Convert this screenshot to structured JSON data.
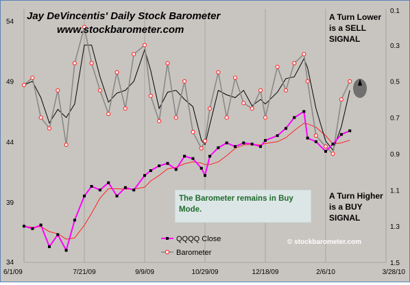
{
  "chart_data": {
    "type": "line",
    "title": "Jay DeVincentis' Daily Stock Barometer",
    "subtitle": "www.stockbarometer.com",
    "x_ticks": [
      "6/1/09",
      "7/21/09",
      "9/9/09",
      "10/29/09",
      "12/18/09",
      "2/6/10",
      "3/28/10"
    ],
    "y_left_ticks": [
      "34",
      "39",
      "44",
      "49",
      "54"
    ],
    "y_right_ticks": [
      "0.1",
      "0.3",
      "0.5",
      "0.7",
      "0.9",
      "1.1",
      "1.3",
      "1.5"
    ],
    "ylim_left": [
      34,
      55
    ],
    "ylim_right_inverted": [
      0.1,
      1.5
    ],
    "grid": "vertical",
    "legend_position": "bottom-center",
    "series": [
      {
        "name": "QQQQ Close",
        "axis": "left",
        "color": "#ff00ff",
        "x": [
          "6/1/09",
          "6/8/09",
          "6/15/09",
          "6/22/09",
          "6/29/09",
          "7/6/09",
          "7/13/09",
          "7/21/09",
          "7/27/09",
          "8/3/09",
          "8/10/09",
          "8/17/09",
          "8/24/09",
          "8/31/09",
          "9/9/09",
          "9/14/09",
          "9/21/09",
          "9/28/09",
          "10/5/09",
          "10/12/09",
          "10/19/09",
          "10/26/09",
          "10/29/09",
          "11/2/09",
          "11/9/09",
          "11/16/09",
          "11/23/09",
          "11/30/09",
          "12/7/09",
          "12/14/09",
          "12/18/09",
          "12/28/09",
          "1/4/10",
          "1/11/10",
          "1/19/10",
          "1/22/10",
          "1/29/10",
          "2/6/10",
          "2/12/10",
          "2/19/10",
          "2/26/10"
        ],
        "values": [
          37.0,
          36.8,
          37.1,
          35.3,
          36.3,
          35.0,
          37.5,
          39.5,
          40.3,
          40.0,
          40.6,
          39.5,
          40.2,
          40.0,
          41.2,
          41.6,
          42.0,
          42.2,
          41.7,
          42.8,
          42.6,
          41.8,
          41.2,
          42.8,
          43.5,
          43.9,
          43.6,
          43.9,
          43.8,
          43.6,
          44.1,
          44.5,
          45.1,
          46.0,
          46.5,
          44.3,
          44.0,
          43.2,
          43.8,
          44.6,
          44.9
        ]
      },
      {
        "name": "Barometer",
        "axis": "right",
        "color": "#888888",
        "x": [
          "6/1/09",
          "6/8/09",
          "6/15/09",
          "6/22/09",
          "6/29/09",
          "7/6/09",
          "7/13/09",
          "7/21/09",
          "7/27/09",
          "8/3/09",
          "8/10/09",
          "8/17/09",
          "8/24/09",
          "8/31/09",
          "9/9/09",
          "9/14/09",
          "9/21/09",
          "9/28/09",
          "10/5/09",
          "10/12/09",
          "10/19/09",
          "10/26/09",
          "10/29/09",
          "11/2/09",
          "11/9/09",
          "11/16/09",
          "11/23/09",
          "11/30/09",
          "12/7/09",
          "12/14/09",
          "12/18/09",
          "12/28/09",
          "1/4/10",
          "1/11/10",
          "1/19/10",
          "1/22/10",
          "1/29/10",
          "2/6/10",
          "2/12/10",
          "2/19/10",
          "2/26/10"
        ],
        "values": [
          0.52,
          0.48,
          0.7,
          0.76,
          0.55,
          0.85,
          0.4,
          0.2,
          0.4,
          0.55,
          0.68,
          0.45,
          0.65,
          0.35,
          0.3,
          0.58,
          0.72,
          0.4,
          0.7,
          0.5,
          0.78,
          0.87,
          0.83,
          0.65,
          0.45,
          0.7,
          0.48,
          0.62,
          0.65,
          0.55,
          0.7,
          0.42,
          0.55,
          0.4,
          0.35,
          0.5,
          0.8,
          0.86,
          0.9,
          0.6,
          0.5
        ]
      }
    ],
    "annotations": {
      "sell_signal": [
        "A Turn Lower",
        "is a SELL",
        "SIGNAL"
      ],
      "buy_signal": [
        "A Turn Higher",
        "is a BUY",
        "SIGNAL"
      ],
      "note": [
        "The Barometer remains in Buy",
        "Mode."
      ],
      "credit": "© stockbarometer.com"
    },
    "colors": {
      "background": "#c8c5c0",
      "qqqq": "#ff00ff",
      "barometer_line": "#888888",
      "barometer_marker": "#ff3030",
      "smoothed": "#000000",
      "moving_avg": "#ff2020",
      "note_box": "#dde6e6"
    }
  }
}
